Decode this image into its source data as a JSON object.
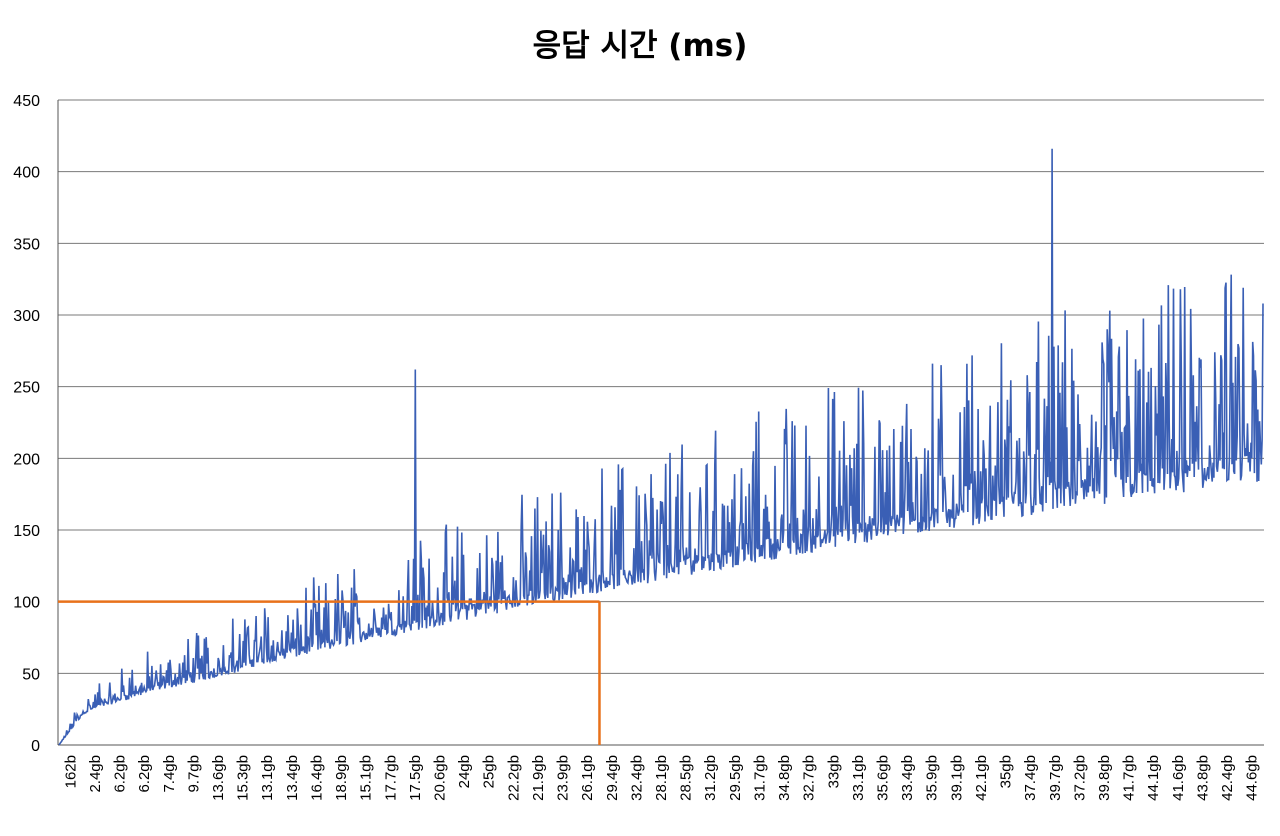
{
  "chart_data": {
    "type": "line",
    "title": "응답 시간 (ms)",
    "xlabel": "",
    "ylabel": "",
    "ylim": [
      0,
      450
    ],
    "yticks": [
      0,
      50,
      100,
      150,
      200,
      250,
      300,
      350,
      400,
      450
    ],
    "grid": true,
    "legend": "none",
    "categories": [
      "162b",
      "2.4gb",
      "6.2gb",
      "6.2gb",
      "7.4gb",
      "9.7gb",
      "13.6gb",
      "15.3gb",
      "13.1gb",
      "13.4gb",
      "16.4gb",
      "18.9gb",
      "15.1gb",
      "17.7gb",
      "17.5gb",
      "20.6gb",
      "24gb",
      "25gb",
      "22.2gb",
      "21.9gb",
      "23.9gb",
      "26.1gb",
      "29.4gb",
      "32.4gb",
      "28.1gb",
      "28.5gb",
      "31.2gb",
      "29.5gb",
      "31.7gb",
      "34.8gb",
      "32.7gb",
      "33gb",
      "33.1gb",
      "35.6gb",
      "33.4gb",
      "35.9gb",
      "39.1gb",
      "42.1gb",
      "35gb",
      "37.4gb",
      "39.7gb",
      "37.2gb",
      "39.8gb",
      "41.7gb",
      "44.1gb",
      "41.6gb",
      "43.8gb",
      "42.4gb",
      "44.6gb"
    ],
    "series": [
      {
        "color": "#3a5fb5",
        "baseline": [
          0,
          22,
          28,
          33,
          38,
          42,
          46,
          50,
          56,
          60,
          63,
          67,
          71,
          75,
          79,
          82,
          86,
          90,
          94,
          97,
          101,
          105,
          108,
          111,
          115,
          118,
          121,
          124,
          128,
          131,
          134,
          137,
          140,
          143,
          146,
          149,
          152,
          155,
          158,
          161,
          164,
          166,
          169,
          172,
          174,
          176,
          178,
          180,
          182
        ],
        "peaks": [
          {
            "x": 14.2,
            "y": 262
          },
          {
            "x": 23.6,
            "y": 189
          },
          {
            "x": 36.2,
            "y": 266
          },
          {
            "x": 39.6,
            "y": 416
          },
          {
            "x": 40.0,
            "y": 267
          },
          {
            "x": 44.7,
            "y": 318
          },
          {
            "x": 47.2,
            "y": 319
          },
          {
            "x": 48.0,
            "y": 308
          },
          {
            "x": 41.8,
            "y": 290
          },
          {
            "x": 38.6,
            "y": 258
          },
          {
            "x": 33.8,
            "y": 238
          },
          {
            "x": 31.3,
            "y": 226
          },
          {
            "x": 27.7,
            "y": 205
          }
        ]
      },
      {
        "name": "",
        "color": "#e8711a",
        "type": "reference",
        "y": 100,
        "x": [
          0,
          21.5
        ]
      }
    ]
  }
}
